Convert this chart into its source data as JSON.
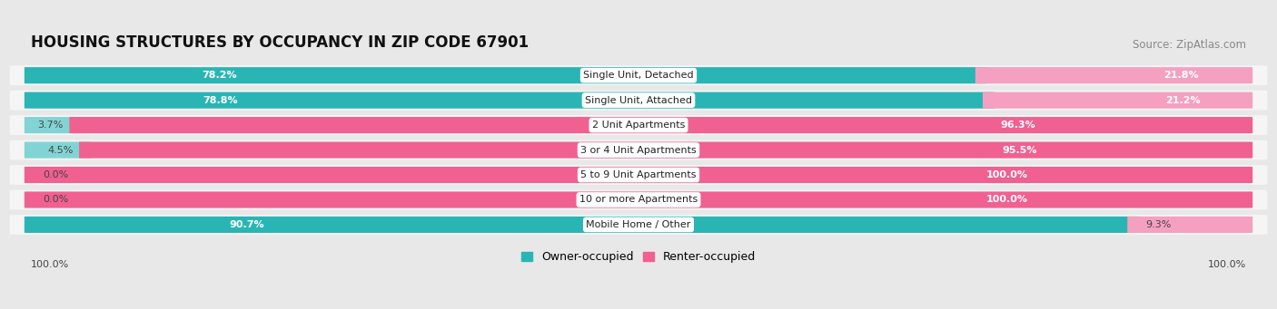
{
  "title": "HOUSING STRUCTURES BY OCCUPANCY IN ZIP CODE 67901",
  "source": "Source: ZipAtlas.com",
  "categories": [
    "Single Unit, Detached",
    "Single Unit, Attached",
    "2 Unit Apartments",
    "3 or 4 Unit Apartments",
    "5 to 9 Unit Apartments",
    "10 or more Apartments",
    "Mobile Home / Other"
  ],
  "owner_pct": [
    78.2,
    78.8,
    3.7,
    4.5,
    0.0,
    0.0,
    90.7
  ],
  "renter_pct": [
    21.8,
    21.2,
    96.3,
    95.5,
    100.0,
    100.0,
    9.3
  ],
  "owner_color_dark": "#2ab5b5",
  "owner_color_light": "#82d4d4",
  "renter_color_dark": "#f06090",
  "renter_color_light": "#f5a0c0",
  "bg_color": "#e8e8e8",
  "bar_bg": "#f5f5f5",
  "title_fontsize": 12,
  "source_fontsize": 8.5,
  "label_fontsize": 8,
  "bar_label_fontsize": 8,
  "legend_fontsize": 9,
  "x_axis_left": "100.0%",
  "x_axis_right": "100.0%"
}
